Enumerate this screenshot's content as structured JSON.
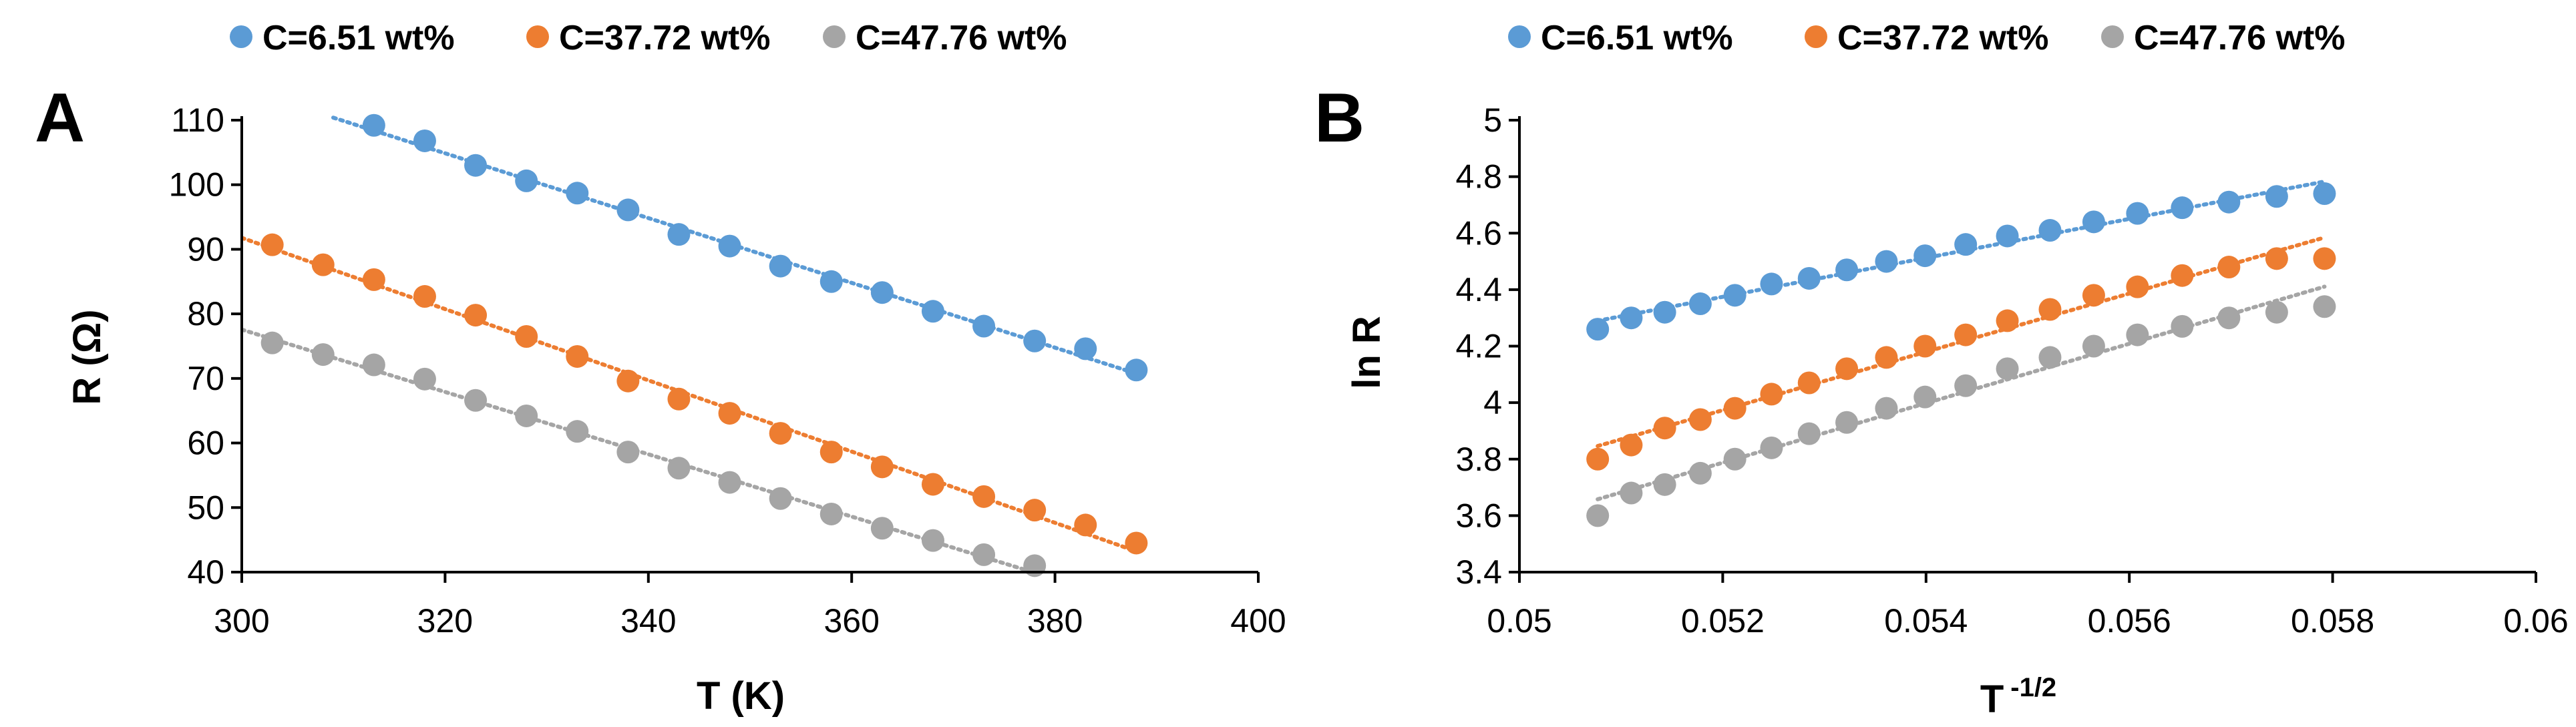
{
  "chart_data": [
    {
      "panel": "A",
      "type": "scatter",
      "title": "",
      "xlabel": "T (K)",
      "ylabel": "R (Ω)",
      "xlim": [
        300,
        400
      ],
      "ylim": [
        40,
        110
      ],
      "xticks": [
        "300",
        "320",
        "340",
        "360",
        "380",
        "400"
      ],
      "yticks": [
        "40",
        "50",
        "60",
        "70",
        "80",
        "90",
        "100",
        "110"
      ],
      "grid": false,
      "legend": "top",
      "trendline": "linear, dotted",
      "series": [
        {
          "name": "C=6.51 wt%",
          "color": "#5B9BD5",
          "x": [
            313,
            318,
            323,
            328,
            333,
            338,
            343,
            348,
            353,
            358,
            363,
            368,
            373,
            378,
            383,
            388
          ],
          "y": [
            109.2,
            106.8,
            103.0,
            100.6,
            98.7,
            96.1,
            92.3,
            90.5,
            87.4,
            85.0,
            83.3,
            80.4,
            78.1,
            75.8,
            74.6,
            71.3
          ],
          "trend_x": [
            309,
            388
          ]
        },
        {
          "name": "C=37.72 wt%",
          "color": "#ED7D31",
          "x": [
            303,
            308,
            313,
            318,
            323,
            328,
            333,
            338,
            343,
            348,
            353,
            358,
            363,
            368,
            373,
            378,
            383,
            388
          ],
          "y": [
            90.7,
            87.6,
            85.3,
            82.7,
            79.8,
            76.5,
            73.4,
            69.6,
            66.8,
            64.6,
            61.5,
            58.6,
            56.3,
            53.6,
            51.7,
            49.6,
            47.3,
            44.5
          ],
          "trend_x": [
            300,
            388
          ]
        },
        {
          "name": "C=47.76 wt%",
          "color": "#A5A5A5",
          "x": [
            303,
            308,
            313,
            318,
            323,
            328,
            333,
            338,
            343,
            348,
            353,
            358,
            363,
            368,
            373,
            378
          ],
          "y": [
            75.5,
            73.7,
            72.1,
            69.9,
            66.6,
            64.2,
            61.8,
            58.6,
            56.1,
            53.9,
            51.4,
            49.0,
            46.8,
            44.9,
            42.7,
            41.0
          ],
          "trend_x": [
            300,
            380
          ]
        }
      ]
    },
    {
      "panel": "B",
      "type": "scatter",
      "title": "",
      "xlabel": "T",
      "xlabel_superscript": "-1/2",
      "ylabel": "ln R",
      "xlim": [
        0.05,
        0.06
      ],
      "ylim": [
        3.4,
        5
      ],
      "xticks": [
        "0.05",
        "0.052",
        "0.054",
        "0.056",
        "0.058",
        "0.06"
      ],
      "yticks": [
        "3.4",
        "3.6",
        "3.8",
        "4",
        "4.2",
        "4.4",
        "4.6",
        "4.8",
        "5"
      ],
      "grid": false,
      "legend": "top",
      "trendline": "linear, dotted",
      "series": [
        {
          "name": "C=6.51 wt%",
          "color": "#5B9BD5",
          "x": [
            0.05077,
            0.0511,
            0.05143,
            0.05178,
            0.05212,
            0.05248,
            0.05285,
            0.05322,
            0.05361,
            0.05399,
            0.05439,
            0.0548,
            0.05522,
            0.05565,
            0.05608,
            0.05652,
            0.05698,
            0.05745,
            0.05792
          ],
          "y": [
            4.26,
            4.3,
            4.32,
            4.35,
            4.38,
            4.42,
            4.44,
            4.47,
            4.5,
            4.52,
            4.56,
            4.59,
            4.61,
            4.64,
            4.67,
            4.69,
            4.71,
            4.73,
            4.74
          ],
          "trend_x": [
            0.05077,
            0.05792
          ]
        },
        {
          "name": "C=37.72 wt%",
          "color": "#ED7D31",
          "x": [
            0.05077,
            0.0511,
            0.05143,
            0.05178,
            0.05212,
            0.05248,
            0.05285,
            0.05322,
            0.05361,
            0.05399,
            0.05439,
            0.0548,
            0.05522,
            0.05565,
            0.05608,
            0.05652,
            0.05698,
            0.05745,
            0.05792
          ],
          "y": [
            3.8,
            3.85,
            3.91,
            3.94,
            3.98,
            4.03,
            4.07,
            4.12,
            4.16,
            4.2,
            4.24,
            4.29,
            4.33,
            4.38,
            4.41,
            4.45,
            4.48,
            4.51,
            4.51
          ],
          "trend_x": [
            0.05077,
            0.05792
          ]
        },
        {
          "name": "C=47.76 wt%",
          "color": "#A5A5A5",
          "x": [
            0.05077,
            0.0511,
            0.05143,
            0.05178,
            0.05212,
            0.05248,
            0.05285,
            0.05322,
            0.05361,
            0.05399,
            0.05439,
            0.0548,
            0.05522,
            0.05565,
            0.05608,
            0.05652,
            0.05698,
            0.05745,
            0.05792
          ],
          "y": [
            3.6,
            3.68,
            3.71,
            3.75,
            3.8,
            3.84,
            3.89,
            3.93,
            3.98,
            4.02,
            4.06,
            4.12,
            4.16,
            4.2,
            4.24,
            4.27,
            4.3,
            4.32,
            4.34
          ],
          "trend_x": [
            0.05077,
            0.05792
          ]
        }
      ]
    }
  ]
}
